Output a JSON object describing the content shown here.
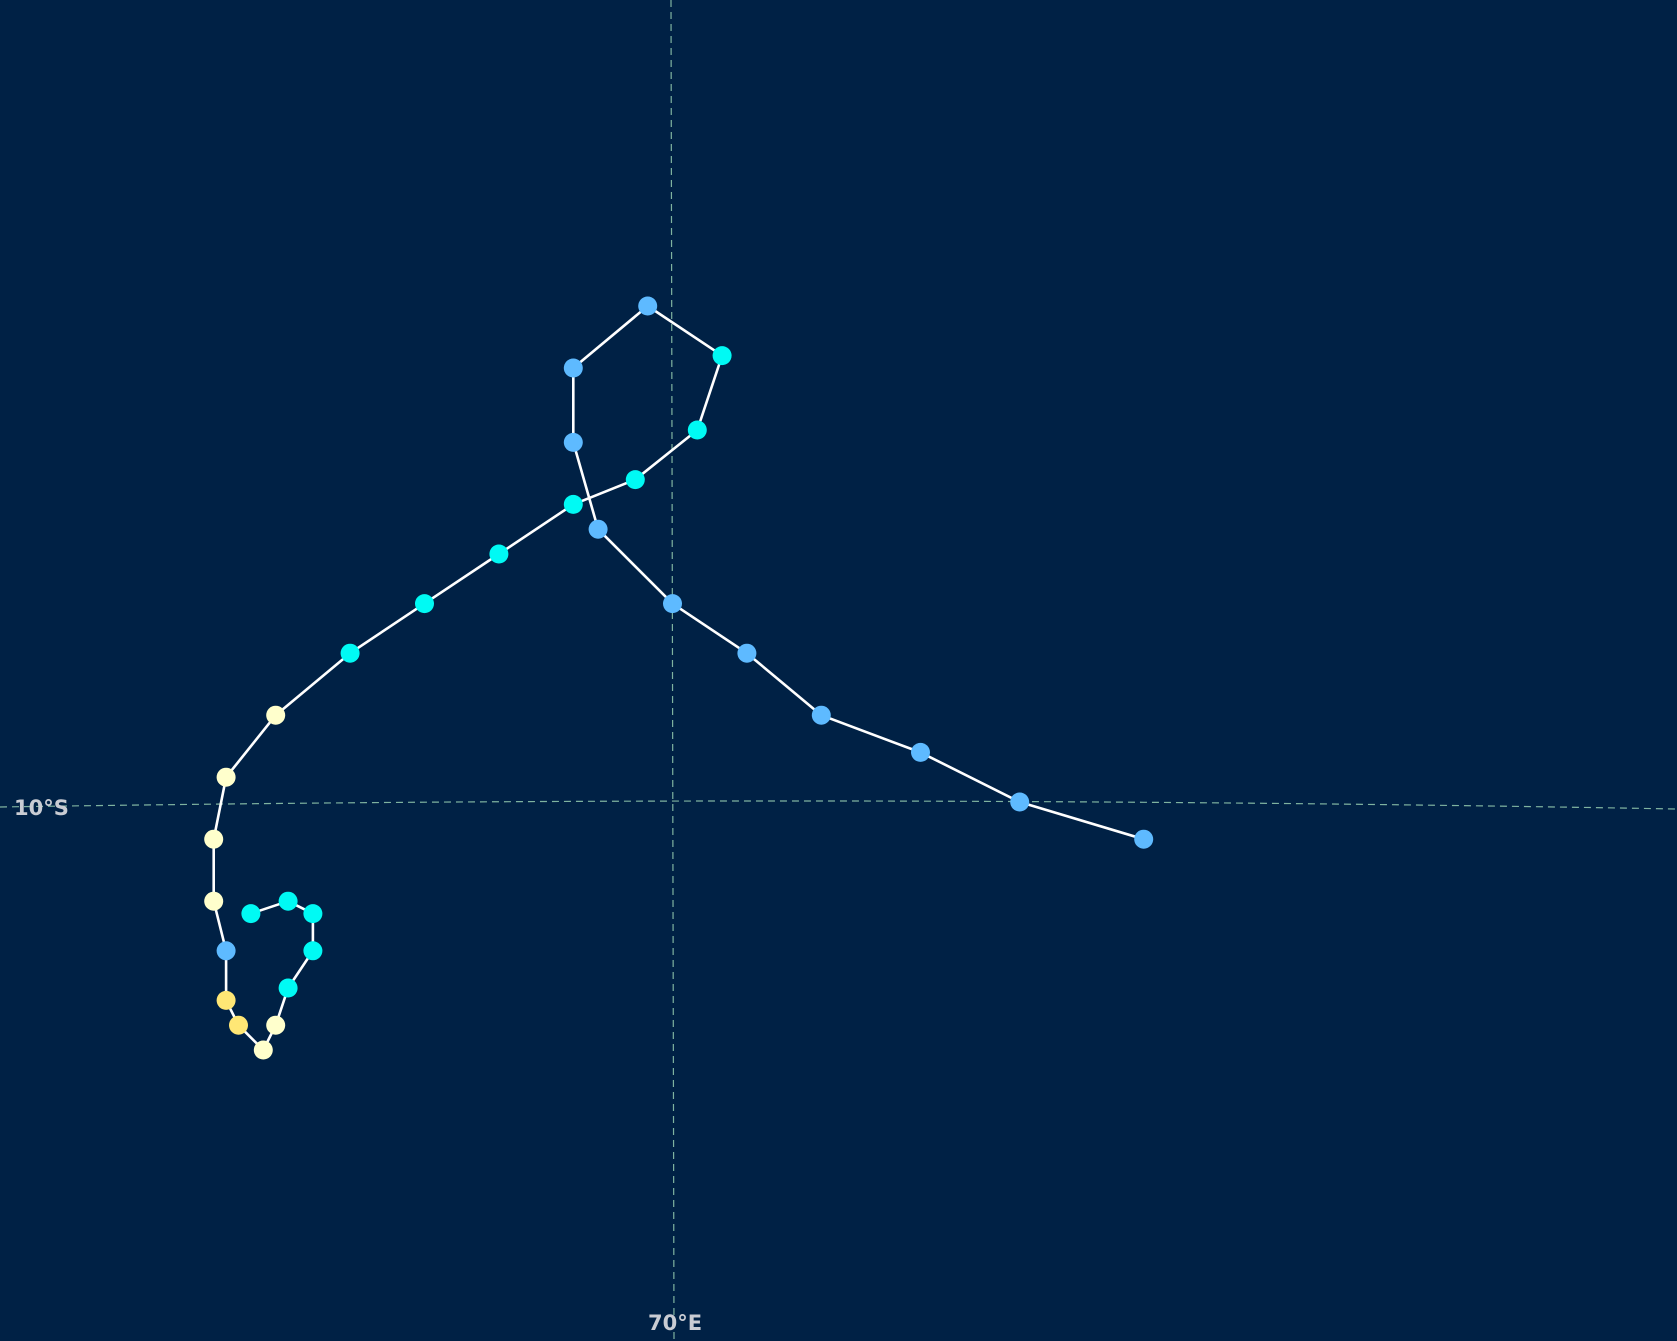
{
  "map": {
    "background": "#002145",
    "gridlines": {
      "longitude": {
        "label": "70°E",
        "value": 70
      },
      "latitude": {
        "label": "10°S",
        "value": -10
      }
    },
    "track_line_color": "#ffffff",
    "legend_colors": {
      "depression": "#5ebaff",
      "storm": "#00faf4",
      "category_1": "#ffffcc",
      "category_2": "#ffe775"
    },
    "track_points": [
      {
        "lon": 73.8,
        "lat": -10.3,
        "color": "#5ebaff"
      },
      {
        "lon": 72.8,
        "lat": -10.0,
        "color": "#5ebaff"
      },
      {
        "lon": 72.0,
        "lat": -9.6,
        "color": "#5ebaff"
      },
      {
        "lon": 71.2,
        "lat": -9.3,
        "color": "#5ebaff"
      },
      {
        "lon": 70.6,
        "lat": -8.8,
        "color": "#5ebaff"
      },
      {
        "lon": 70.0,
        "lat": -8.4,
        "color": "#5ebaff"
      },
      {
        "lon": 69.4,
        "lat": -7.8,
        "color": "#5ebaff"
      },
      {
        "lon": 69.2,
        "lat": -7.1,
        "color": "#5ebaff"
      },
      {
        "lon": 69.2,
        "lat": -6.5,
        "color": "#5ebaff"
      },
      {
        "lon": 69.8,
        "lat": -6.0,
        "color": "#5ebaff"
      },
      {
        "lon": 70.4,
        "lat": -6.4,
        "color": "#00faf4"
      },
      {
        "lon": 70.2,
        "lat": -7.0,
        "color": "#00faf4"
      },
      {
        "lon": 69.7,
        "lat": -7.4,
        "color": "#00faf4"
      },
      {
        "lon": 69.2,
        "lat": -7.6,
        "color": "#00faf4"
      },
      {
        "lon": 68.6,
        "lat": -8.0,
        "color": "#00faf4"
      },
      {
        "lon": 68.0,
        "lat": -8.4,
        "color": "#00faf4"
      },
      {
        "lon": 67.4,
        "lat": -8.8,
        "color": "#00faf4"
      },
      {
        "lon": 66.8,
        "lat": -9.3,
        "color": "#ffffcc"
      },
      {
        "lon": 66.4,
        "lat": -9.8,
        "color": "#ffffcc"
      },
      {
        "lon": 66.3,
        "lat": -10.3,
        "color": "#ffffcc"
      },
      {
        "lon": 66.3,
        "lat": -10.8,
        "color": "#ffffcc"
      },
      {
        "lon": 66.4,
        "lat": -11.2,
        "color": "#5ebaff"
      },
      {
        "lon": 66.4,
        "lat": -11.6,
        "color": "#ffe775"
      },
      {
        "lon": 66.5,
        "lat": -11.8,
        "color": "#ffe775"
      },
      {
        "lon": 66.7,
        "lat": -12.0,
        "color": "#ffffcc"
      },
      {
        "lon": 66.8,
        "lat": -11.8,
        "color": "#ffffcc"
      },
      {
        "lon": 66.9,
        "lat": -11.5,
        "color": "#00faf4"
      },
      {
        "lon": 67.1,
        "lat": -11.2,
        "color": "#00faf4"
      },
      {
        "lon": 67.1,
        "lat": -10.9,
        "color": "#00faf4"
      },
      {
        "lon": 66.9,
        "lat": -10.8,
        "color": "#00faf4"
      },
      {
        "lon": 66.6,
        "lat": -10.9,
        "color": "#00faf4"
      }
    ]
  }
}
